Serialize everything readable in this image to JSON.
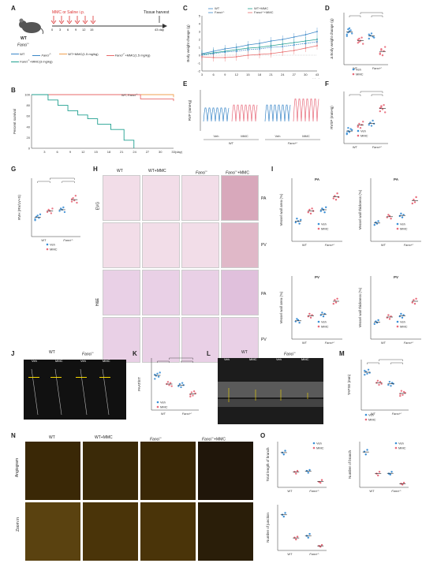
{
  "panels": {
    "A": "A",
    "B": "B",
    "C": "C",
    "D": "D",
    "E": "E",
    "F": "F",
    "G": "G",
    "H": "H",
    "I": "I",
    "J": "J",
    "K": "K",
    "L": "L",
    "M": "M",
    "N": "N",
    "O": "O"
  },
  "panelA": {
    "mouse_label": "WT",
    "mouse_label2": "Fanci",
    "mouse_sup": "-/-",
    "injection": "MMC or Saline i.p.",
    "harvest": "Tissue harvest",
    "days": [
      "0",
      "3",
      "6",
      "9",
      "12",
      "15",
      "43 day"
    ]
  },
  "legendTop": {
    "items": [
      "WT",
      "Fanci",
      "WT+MMC(1.5 mg/kg)",
      "Fanci",
      "Fanci"
    ],
    "sup": [
      "",
      "-/-",
      "",
      "-/-",
      "-/-"
    ],
    "suffix": [
      "",
      "",
      "",
      "+MMC(1.5 mg/kg)",
      "+MMC(3 mg/kg)"
    ],
    "colors": [
      "#3b87c8",
      "#3b87c8",
      "#f0a050",
      "#e86a6a",
      "#20a090"
    ]
  },
  "panelB": {
    "ylabel": "Percent survival",
    "note": "WT, Fanci",
    "note_sup": "-/-",
    "yticks": [
      "100",
      "80",
      "60",
      "40",
      "20",
      "0"
    ],
    "xticks": [
      "3",
      "6",
      "9",
      "12",
      "15",
      "18",
      "21",
      "24",
      "27",
      "30",
      "33"
    ],
    "xunit": "(day)",
    "chart_data": {
      "type": "line",
      "series": [
        {
          "name": "WT, Fanci-/-",
          "x": [
            0,
            43
          ],
          "values": [
            100,
            100
          ]
        },
        {
          "name": "WT+MMC(1.5 mg/kg)",
          "x": [
            0,
            33,
            43
          ],
          "values": [
            100,
            100,
            95
          ]
        },
        {
          "name": "Fanci-/-+MMC(1.5 mg/kg)",
          "x": [
            0,
            30,
            33,
            43
          ],
          "values": [
            100,
            100,
            92,
            88
          ]
        },
        {
          "name": "Fanci-/-+MMC(3 mg/kg)",
          "x": [
            0,
            5,
            8,
            11,
            14,
            17,
            20,
            24,
            28,
            31
          ],
          "values": [
            100,
            90,
            80,
            70,
            62,
            55,
            45,
            35,
            15,
            0
          ]
        }
      ]
    }
  },
  "panelC": {
    "legend": [
      "WT",
      "WT+MMC",
      "Fanci",
      "Fanci"
    ],
    "legend_sup": [
      "",
      "",
      "-/-",
      "-/-"
    ],
    "legend_suffix": [
      "",
      "",
      "",
      "+MMC"
    ],
    "ylabel": "Body weight change (g)",
    "yticks": [
      "5",
      "4",
      "3",
      "2",
      "1",
      "0",
      "-1",
      "-2"
    ],
    "xticks": [
      "3",
      "6",
      "9",
      "12",
      "15",
      "18",
      "21",
      "24",
      "27",
      "30",
      "43"
    ],
    "xunit": "(day)",
    "chart_data": {
      "type": "line",
      "x": [
        3,
        6,
        9,
        12,
        15,
        18,
        21,
        24,
        27,
        30,
        43
      ],
      "ylim": [
        -2,
        5
      ],
      "series": [
        {
          "name": "WT",
          "values": [
            0.2,
            0.5,
            0.8,
            1.0,
            1.3,
            1.5,
            1.8,
            2.0,
            2.3,
            2.6,
            3.0
          ]
        },
        {
          "name": "WT+MMC",
          "values": [
            0.1,
            0.3,
            0.5,
            0.7,
            0.9,
            1.0,
            1.2,
            1.4,
            1.6,
            1.8,
            2.0
          ]
        },
        {
          "name": "Fanci-/-",
          "values": [
            0.0,
            0.2,
            0.4,
            0.5,
            0.7,
            0.8,
            1.0,
            1.1,
            1.3,
            1.5,
            1.7
          ]
        },
        {
          "name": "Fanci-/-+MMC",
          "values": [
            -0.2,
            -0.3,
            -0.3,
            -0.2,
            0.0,
            0.1,
            0.2,
            0.4,
            0.6,
            0.9,
            1.2
          ]
        }
      ]
    }
  },
  "panelD": {
    "ylabel": "Δ Body weight change (g)",
    "legend": [
      "Veh",
      "MMC"
    ],
    "xgroups": [
      "WT",
      "Fanci"
    ],
    "xgroup_sup": [
      "",
      "-/-"
    ]
  },
  "panelE": {
    "ylabel": "RVP (mmHg)",
    "labels": [
      "Veh",
      "MMC",
      "Veh",
      "MMC"
    ],
    "groups": [
      "WT",
      "Fanci"
    ],
    "group_sup": [
      "",
      "-/-"
    ]
  },
  "panelF": {
    "ylabel": "RVSP (mmHg)",
    "legend": [
      "Veh",
      "MMC"
    ],
    "xgroups": [
      "WT",
      "Fanci"
    ],
    "xgroup_sup": [
      "",
      "-/-"
    ]
  },
  "panelG": {
    "ylabel": "RVH (RV/LV+S)",
    "legend": [
      "Veh",
      "MMC"
    ],
    "xgroups": [
      "WT",
      "Fanci"
    ],
    "xgroup_sup": [
      "",
      "-/-"
    ]
  },
  "panelH": {
    "cols": [
      "WT",
      "WT+MMC",
      "Fanci",
      "Fanci"
    ],
    "col_sup": [
      "",
      "",
      "-/-",
      "-/-"
    ],
    "col_suffix": [
      "",
      "",
      "",
      "+MMC"
    ],
    "rows": [
      "EVG",
      "H&E"
    ],
    "side": [
      "PA",
      "PV",
      "PA",
      "PV"
    ]
  },
  "panelI": {
    "titles": [
      "PA",
      "PA",
      "PV",
      "PV"
    ],
    "ylabels": [
      "Vessel wall area (%)",
      "Vessel wall thickness (%)",
      "Vessel wall area (%)",
      "Vessel wall thickness (%)"
    ],
    "legend": [
      "Veh",
      "MMC"
    ],
    "xgroups": [
      "WT",
      "Fanci"
    ],
    "xgroup_sup": [
      "",
      "-/-"
    ]
  },
  "panelJ": {
    "groups": [
      "WT",
      "Fanci"
    ],
    "group_sup": [
      "",
      "-/-"
    ],
    "labels": [
      "Veh",
      "MMC",
      "Veh",
      "MMC"
    ]
  },
  "panelK": {
    "ylabel": "PAAT/ET",
    "legend": [
      "Veh",
      "MMC"
    ],
    "xgroups": [
      "WT",
      "Fanci"
    ],
    "xgroup_sup": [
      "",
      "-/-"
    ]
  },
  "panelL": {
    "groups": [
      "WT",
      "Fanci"
    ],
    "group_sup": [
      "",
      "-/-"
    ],
    "labels": [
      "Veh",
      "MMC",
      "Veh",
      "MMC"
    ]
  },
  "panelM": {
    "ylabel": "TAPSE (mm)",
    "legend": [
      "Veh",
      "MMC"
    ],
    "xgroups": [
      "WT",
      "Fanci"
    ],
    "xgroup_sup": [
      "",
      "-/-"
    ]
  },
  "panelN": {
    "cols": [
      "WT",
      "WT+MMC",
      "Fanci",
      "Fanci"
    ],
    "col_sup": [
      "",
      "",
      "-/-",
      "-/-"
    ],
    "col_suffix": [
      "",
      "",
      "",
      "+MMC"
    ],
    "rows": [
      "Angiogram",
      "Zoom in"
    ]
  },
  "panelO": {
    "legend": [
      "Veh",
      "MMC"
    ],
    "ylabels": [
      "Total length of branch",
      "Number of branch",
      "Number of junction"
    ],
    "xgroups": [
      "WT",
      "Fanci"
    ],
    "xgroup_sup": [
      "",
      "-/-"
    ]
  },
  "colors": {
    "veh": "#3b8fd6",
    "mmc": "#e86a7a",
    "wt": "#3b87c8",
    "fanci_mmc": "#e86a6a",
    "wt_mmc": "#20a090"
  }
}
